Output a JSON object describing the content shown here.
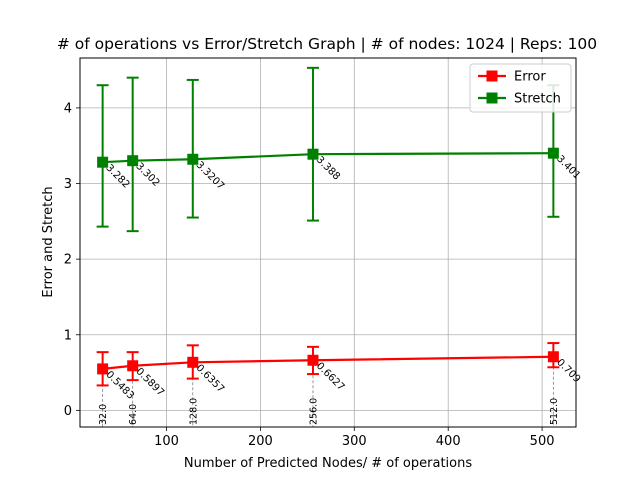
{
  "chart_data": {
    "type": "line",
    "title": "# of operations vs Error/Stretch Graph | # of nodes: 1024 | Reps: 100",
    "xlabel": "Number of Predicted Nodes/ # of operations",
    "ylabel": "Error and Stretch",
    "xlim": [
      7.9,
      536.1
    ],
    "ylim": [
      -0.22,
      4.66
    ],
    "xticks": [
      100,
      200,
      300,
      400,
      500
    ],
    "yticks": [
      0,
      1,
      2,
      3,
      4
    ],
    "grid": true,
    "legend_position": "top-right",
    "x": [
      32,
      64,
      128,
      256,
      512
    ],
    "vline_labels": [
      "32.0",
      "64.0",
      "128.0",
      "256.0",
      "512.0"
    ],
    "series": [
      {
        "name": "Error",
        "color": "#ff0000",
        "values": [
          0.5483,
          0.5897,
          0.6357,
          0.6627,
          0.709
        ],
        "labels": [
          "0.5483",
          "0.5897",
          "0.6357",
          "0.6627",
          "0.709"
        ],
        "err_low": [
          0.33,
          0.4,
          0.42,
          0.48,
          0.57
        ],
        "err_high": [
          0.77,
          0.77,
          0.86,
          0.84,
          0.89
        ]
      },
      {
        "name": "Stretch",
        "color": "#008000",
        "values": [
          3.282,
          3.302,
          3.3207,
          3.388,
          3.401
        ],
        "labels": [
          "3.282",
          "3.302",
          "3.3207",
          "3.388",
          "3.401"
        ],
        "err_low": [
          2.43,
          2.37,
          2.55,
          2.51,
          2.56
        ],
        "err_high": [
          4.3,
          4.4,
          4.37,
          4.53,
          4.3
        ]
      }
    ]
  }
}
